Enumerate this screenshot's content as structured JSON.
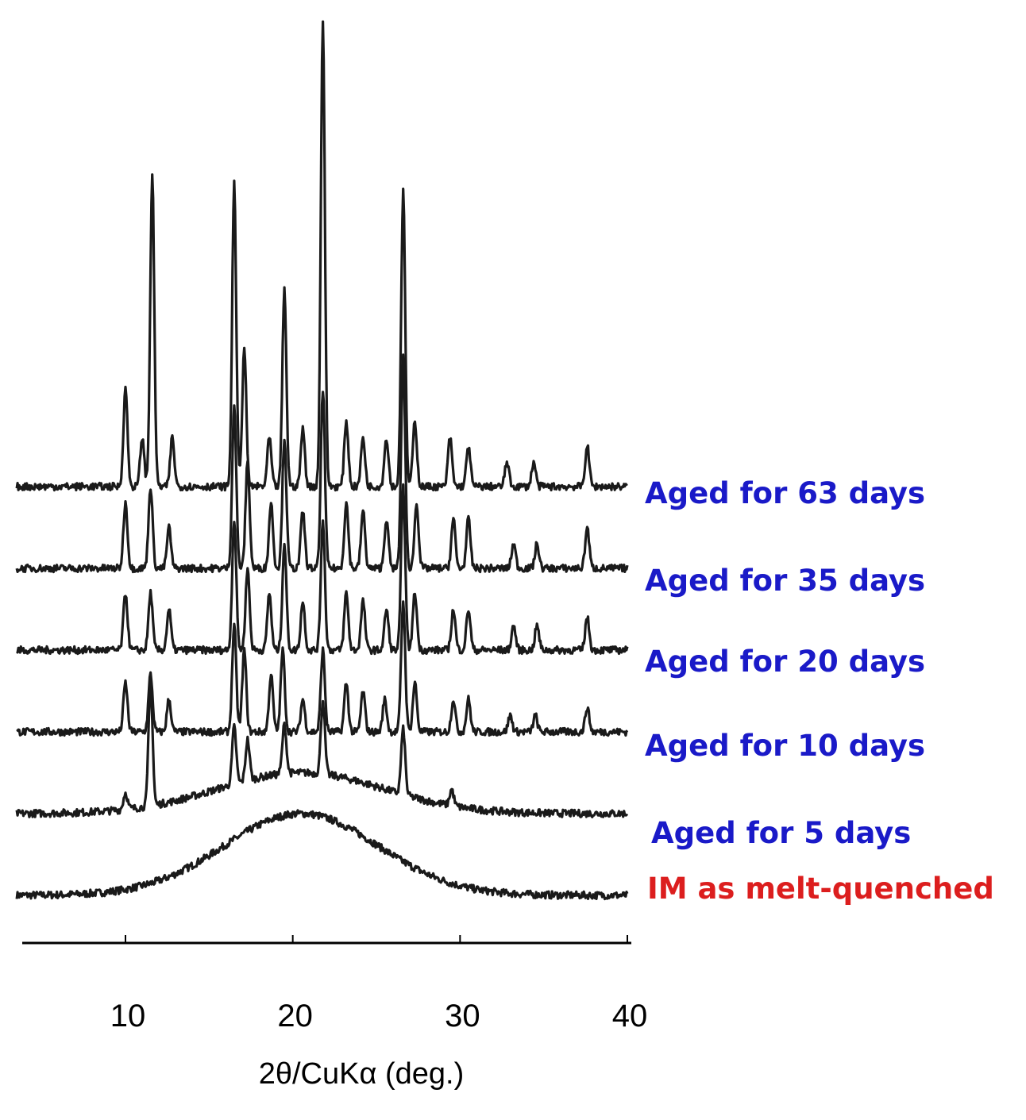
{
  "chart_data": {
    "type": "line",
    "title": "",
    "xlabel": "2θ/CuKα (deg.)",
    "ylabel": "",
    "xlim": [
      3,
      40
    ],
    "xticks": [
      10,
      20,
      30,
      40
    ],
    "grid": false,
    "legend": "right-of-traces",
    "colors": {
      "aged": "#1a1ac8",
      "melt": "#dc1e1e",
      "trace": "#1a1a1a"
    },
    "series": [
      {
        "name": "IM as melt-quenched",
        "color": "#dc1e1e",
        "baseline": 0.0,
        "amorphous_halo": {
          "center": 20.5,
          "width": 6.5,
          "height": 1.0
        },
        "peaks": []
      },
      {
        "name": "Aged for 5 days",
        "color": "#1a1ac8",
        "baseline": 1.0,
        "amorphous_halo": {
          "center": 20.5,
          "width": 7,
          "height": 0.5
        },
        "peaks": [
          [
            10.0,
            0.2
          ],
          [
            11.5,
            1.5
          ],
          [
            16.5,
            0.7
          ],
          [
            17.3,
            0.5
          ],
          [
            19.5,
            0.6
          ],
          [
            21.8,
            0.9
          ],
          [
            26.6,
            0.8
          ],
          [
            29.5,
            0.2
          ]
        ]
      },
      {
        "name": "Aged for 10 days",
        "color": "#1a1ac8",
        "baseline": 2.0,
        "peaks": [
          [
            10.0,
            0.6
          ],
          [
            11.5,
            0.7
          ],
          [
            12.6,
            0.4
          ],
          [
            16.5,
            1.3
          ],
          [
            17.1,
            1.0
          ],
          [
            18.7,
            0.7
          ],
          [
            19.4,
            1.0
          ],
          [
            20.6,
            0.4
          ],
          [
            21.8,
            1.0
          ],
          [
            23.2,
            0.6
          ],
          [
            24.2,
            0.5
          ],
          [
            25.5,
            0.4
          ],
          [
            26.6,
            1.6
          ],
          [
            27.3,
            0.6
          ],
          [
            29.6,
            0.4
          ],
          [
            30.5,
            0.4
          ],
          [
            33.0,
            0.2
          ],
          [
            34.5,
            0.2
          ],
          [
            37.6,
            0.3
          ]
        ]
      },
      {
        "name": "Aged for 20 days",
        "color": "#1a1ac8",
        "baseline": 3.0,
        "peaks": [
          [
            10.0,
            0.7
          ],
          [
            11.5,
            0.7
          ],
          [
            12.6,
            0.5
          ],
          [
            16.5,
            1.6
          ],
          [
            17.3,
            1.0
          ],
          [
            18.6,
            0.7
          ],
          [
            19.5,
            1.3
          ],
          [
            20.6,
            0.6
          ],
          [
            21.8,
            1.6
          ],
          [
            23.2,
            0.7
          ],
          [
            24.2,
            0.6
          ],
          [
            25.6,
            0.5
          ],
          [
            26.6,
            2.0
          ],
          [
            27.3,
            0.7
          ],
          [
            29.6,
            0.5
          ],
          [
            30.5,
            0.5
          ],
          [
            33.2,
            0.3
          ],
          [
            34.6,
            0.3
          ],
          [
            37.6,
            0.4
          ]
        ]
      },
      {
        "name": "Aged for 35 days",
        "color": "#1a1ac8",
        "baseline": 4.0,
        "peaks": [
          [
            10.0,
            0.8
          ],
          [
            11.5,
            1.0
          ],
          [
            12.6,
            0.5
          ],
          [
            16.5,
            2.0
          ],
          [
            17.3,
            1.3
          ],
          [
            18.7,
            0.8
          ],
          [
            19.5,
            1.6
          ],
          [
            20.6,
            0.7
          ],
          [
            21.8,
            2.2
          ],
          [
            23.2,
            0.8
          ],
          [
            24.2,
            0.7
          ],
          [
            25.6,
            0.6
          ],
          [
            26.6,
            2.6
          ],
          [
            27.4,
            0.8
          ],
          [
            29.6,
            0.6
          ],
          [
            30.5,
            0.6
          ],
          [
            33.2,
            0.3
          ],
          [
            34.6,
            0.3
          ],
          [
            37.6,
            0.5
          ]
        ]
      },
      {
        "name": "Aged for 63 days",
        "color": "#1a1ac8",
        "baseline": 5.0,
        "peaks": [
          [
            10.0,
            1.2
          ],
          [
            11.0,
            0.6
          ],
          [
            11.6,
            3.8
          ],
          [
            12.8,
            0.6
          ],
          [
            16.5,
            3.7
          ],
          [
            17.1,
            1.7
          ],
          [
            18.6,
            0.6
          ],
          [
            19.5,
            2.4
          ],
          [
            20.6,
            0.7
          ],
          [
            21.8,
            5.7
          ],
          [
            23.2,
            0.8
          ],
          [
            24.2,
            0.6
          ],
          [
            25.6,
            0.6
          ],
          [
            26.6,
            3.6
          ],
          [
            27.3,
            0.8
          ],
          [
            29.4,
            0.6
          ],
          [
            30.5,
            0.5
          ],
          [
            32.8,
            0.3
          ],
          [
            34.4,
            0.3
          ],
          [
            37.6,
            0.5
          ]
        ]
      }
    ]
  }
}
